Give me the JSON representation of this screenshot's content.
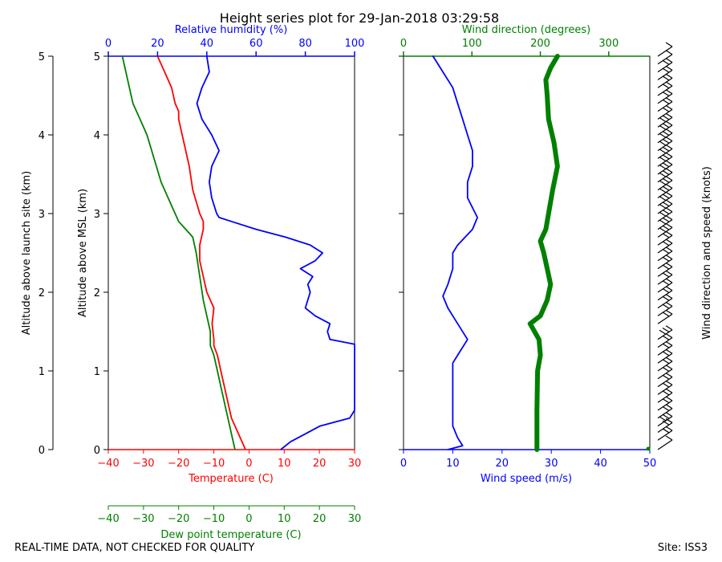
{
  "title": "Height series plot for 29-Jan-2018 03:29:58",
  "footer": {
    "left": "REAL-TIME DATA, NOT CHECKED FOR QUALITY",
    "right": "Site: ISS3"
  },
  "colors": {
    "temperature": "#ff0000",
    "dewpoint": "#008000",
    "humidity": "#0000ff",
    "wind_speed": "#0000ff",
    "wind_direction": "#008000",
    "barbs": "#000000"
  },
  "chart_data": [
    {
      "type": "line",
      "panel": "thermodynamic",
      "ylabel_outer": "Altitude above launch site (km)",
      "ylabel_inner": "Altitude above MSL (km)",
      "ylim": [
        0,
        5
      ],
      "yticks": [
        "0",
        "1",
        "2",
        "3",
        "4",
        "5"
      ],
      "axes": {
        "temperature": {
          "label": "Temperature (C)",
          "range": [
            -40,
            30
          ],
          "ticks": [
            "−40",
            "−30",
            "−20",
            "−10",
            "0",
            "10",
            "20",
            "30"
          ]
        },
        "dewpoint": {
          "label": "Dew point temperature (C)",
          "range": [
            -40,
            30
          ],
          "ticks": [
            "−40",
            "−30",
            "−20",
            "−10",
            "0",
            "10",
            "20",
            "30"
          ]
        },
        "humidity": {
          "label": "Relative humidity (%)",
          "range": [
            0,
            100
          ],
          "ticks": [
            "0",
            "20",
            "40",
            "60",
            "80",
            "100"
          ]
        }
      },
      "series": [
        {
          "name": "Temperature",
          "axis": "temperature",
          "points": [
            [
              -1,
              0
            ],
            [
              -3,
              0.2
            ],
            [
              -5,
              0.4
            ],
            [
              -6,
              0.6
            ],
            [
              -7,
              0.8
            ],
            [
              -8,
              1.0
            ],
            [
              -9,
              1.2
            ],
            [
              -10,
              1.32
            ],
            [
              -10,
              1.4
            ],
            [
              -10.5,
              1.6
            ],
            [
              -10,
              1.8
            ],
            [
              -11,
              1.9
            ],
            [
              -12,
              2.0
            ],
            [
              -13,
              2.2
            ],
            [
              -14,
              2.4
            ],
            [
              -14,
              2.6
            ],
            [
              -13,
              2.8
            ],
            [
              -13,
              2.9
            ],
            [
              -14,
              3.0
            ],
            [
              -16,
              3.3
            ],
            [
              -17,
              3.6
            ],
            [
              -18,
              3.8
            ],
            [
              -19,
              4.0
            ],
            [
              -20,
              4.2
            ],
            [
              -20,
              4.3
            ],
            [
              -21,
              4.4
            ],
            [
              -22,
              4.6
            ],
            [
              -24,
              4.8
            ],
            [
              -26,
              5.0
            ]
          ]
        },
        {
          "name": "Dew point",
          "axis": "dewpoint",
          "points": [
            [
              -4,
              0
            ],
            [
              -5,
              0.2
            ],
            [
              -6,
              0.4
            ],
            [
              -7,
              0.6
            ],
            [
              -8,
              0.8
            ],
            [
              -9,
              1.0
            ],
            [
              -10,
              1.2
            ],
            [
              -11,
              1.32
            ],
            [
              -11,
              1.5
            ],
            [
              -12,
              1.7
            ],
            [
              -13,
              1.9
            ],
            [
              -14,
              2.2
            ],
            [
              -15,
              2.5
            ],
            [
              -16,
              2.7
            ],
            [
              -18,
              2.8
            ],
            [
              -20,
              2.9
            ],
            [
              -22,
              3.1
            ],
            [
              -25,
              3.4
            ],
            [
              -27,
              3.7
            ],
            [
              -29,
              4.0
            ],
            [
              -31,
              4.2
            ],
            [
              -33,
              4.4
            ],
            [
              -34,
              4.6
            ],
            [
              -35,
              4.8
            ],
            [
              -36,
              5.0
            ]
          ]
        },
        {
          "name": "Relative humidity",
          "axis": "humidity",
          "points": [
            [
              70,
              0
            ],
            [
              74,
              0.1
            ],
            [
              80,
              0.2
            ],
            [
              86,
              0.3
            ],
            [
              98,
              0.4
            ],
            [
              100,
              0.5
            ],
            [
              100,
              1.34
            ],
            [
              90,
              1.4
            ],
            [
              89,
              1.5
            ],
            [
              90,
              1.6
            ],
            [
              84,
              1.7
            ],
            [
              80,
              1.8
            ],
            [
              82,
              2.0
            ],
            [
              81,
              2.1
            ],
            [
              83,
              2.2
            ],
            [
              78,
              2.3
            ],
            [
              84,
              2.4
            ],
            [
              87,
              2.5
            ],
            [
              82,
              2.6
            ],
            [
              72,
              2.7
            ],
            [
              60,
              2.8
            ],
            [
              50,
              2.9
            ],
            [
              45,
              2.95
            ],
            [
              44,
              3.0
            ],
            [
              42,
              3.2
            ],
            [
              41,
              3.4
            ],
            [
              42,
              3.6
            ],
            [
              45,
              3.8
            ],
            [
              42,
              4.0
            ],
            [
              38,
              4.2
            ],
            [
              36,
              4.4
            ],
            [
              38,
              4.6
            ],
            [
              41,
              4.8
            ],
            [
              40,
              5.0
            ]
          ]
        }
      ]
    },
    {
      "type": "line",
      "panel": "wind",
      "ylabel": "Wind direction and speed (knots)",
      "ylim": [
        0,
        5
      ],
      "axes": {
        "wind_speed": {
          "label": "Wind speed (m/s)",
          "range": [
            0,
            50
          ],
          "ticks": [
            "0",
            "10",
            "20",
            "30",
            "40",
            "50"
          ]
        },
        "wind_direction": {
          "label": "Wind direction (degrees)",
          "range": [
            0,
            360
          ],
          "ticks": [
            "0",
            "100",
            "200",
            "300"
          ]
        }
      },
      "series": [
        {
          "name": "Wind speed",
          "axis": "wind_speed",
          "points": [
            [
              9,
              0
            ],
            [
              12,
              0.05
            ],
            [
              11,
              0.15
            ],
            [
              10,
              0.3
            ],
            [
              10,
              0.6
            ],
            [
              10,
              0.9
            ],
            [
              10,
              1.1
            ],
            [
              11,
              1.2
            ],
            [
              13,
              1.4
            ],
            [
              11,
              1.6
            ],
            [
              9,
              1.8
            ],
            [
              8,
              1.95
            ],
            [
              9,
              2.1
            ],
            [
              10,
              2.3
            ],
            [
              10,
              2.5
            ],
            [
              11,
              2.6
            ],
            [
              14,
              2.8
            ],
            [
              15,
              2.95
            ],
            [
              13,
              3.2
            ],
            [
              13,
              3.4
            ],
            [
              14,
              3.6
            ],
            [
              14,
              3.8
            ],
            [
              13,
              4.0
            ],
            [
              12,
              4.2
            ],
            [
              11,
              4.4
            ],
            [
              10,
              4.6
            ],
            [
              8,
              4.8
            ],
            [
              6,
              5.0
            ]
          ]
        },
        {
          "name": "Wind direction",
          "axis": "wind_direction",
          "points": [
            [
              195,
              0
            ],
            [
              195,
              0.5
            ],
            [
              196,
              1.0
            ],
            [
              200,
              1.2
            ],
            [
              198,
              1.4
            ],
            [
              185,
              1.6
            ],
            [
              200,
              1.7
            ],
            [
              210,
              1.9
            ],
            [
              215,
              2.1
            ],
            [
              210,
              2.3
            ],
            [
              205,
              2.5
            ],
            [
              200,
              2.65
            ],
            [
              208,
              2.8
            ],
            [
              212,
              3.0
            ],
            [
              218,
              3.3
            ],
            [
              225,
              3.6
            ],
            [
              220,
              3.9
            ],
            [
              212,
              4.2
            ],
            [
              210,
              4.5
            ],
            [
              208,
              4.7
            ],
            [
              215,
              4.85
            ],
            [
              225,
              5.0
            ]
          ]
        }
      ],
      "barbs": [
        [
          0,
          7
        ],
        [
          0.12,
          10
        ],
        [
          0.22,
          11
        ],
        [
          0.3,
          13
        ],
        [
          0.4,
          11
        ],
        [
          0.5,
          10
        ],
        [
          0.6,
          10
        ],
        [
          0.7,
          10
        ],
        [
          0.8,
          10
        ],
        [
          0.9,
          10
        ],
        [
          1.0,
          10
        ],
        [
          1.1,
          10
        ],
        [
          1.2,
          11
        ],
        [
          1.3,
          12
        ],
        [
          1.4,
          13
        ],
        [
          1.6,
          12
        ],
        [
          1.7,
          11
        ],
        [
          1.8,
          10
        ],
        [
          1.9,
          9
        ],
        [
          2.0,
          10
        ],
        [
          2.1,
          10
        ],
        [
          2.2,
          10
        ],
        [
          2.3,
          10
        ],
        [
          2.4,
          11
        ],
        [
          2.5,
          11
        ],
        [
          2.6,
          12
        ],
        [
          2.7,
          13
        ],
        [
          2.8,
          14
        ],
        [
          2.9,
          14
        ],
        [
          3.0,
          13
        ],
        [
          3.1,
          13
        ],
        [
          3.2,
          13
        ],
        [
          3.3,
          13
        ],
        [
          3.4,
          13
        ],
        [
          3.5,
          14
        ],
        [
          3.6,
          14
        ],
        [
          3.7,
          14
        ],
        [
          3.8,
          14
        ],
        [
          3.9,
          13
        ],
        [
          4.0,
          13
        ],
        [
          4.1,
          13
        ],
        [
          4.2,
          12
        ],
        [
          4.3,
          12
        ],
        [
          4.4,
          11
        ],
        [
          4.5,
          11
        ],
        [
          4.6,
          10
        ],
        [
          4.7,
          9
        ],
        [
          4.8,
          8
        ],
        [
          4.9,
          7
        ],
        [
          5.0,
          6
        ]
      ]
    }
  ]
}
